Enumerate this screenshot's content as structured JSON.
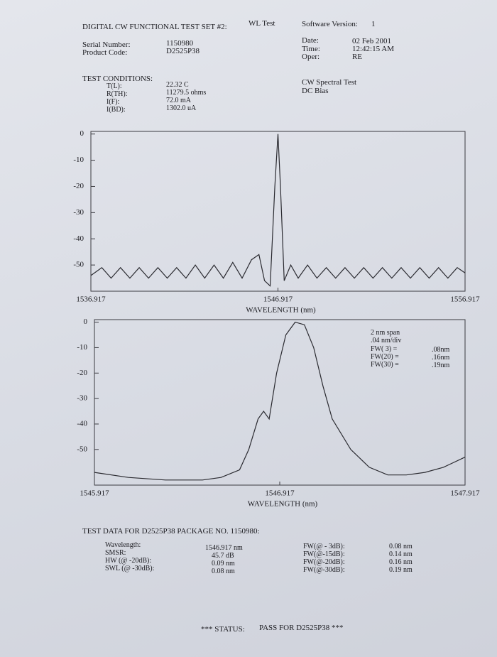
{
  "header": {
    "title": "DIGITAL CW FUNCTIONAL TEST SET #2:",
    "test_name": "WL Test",
    "software_label": "Software Version:",
    "software_version": "1"
  },
  "info_left": [
    {
      "label": "Serial Number:",
      "value": "1150980"
    },
    {
      "label": "Product Code:",
      "value": "D2525P38"
    }
  ],
  "info_right": [
    {
      "label": "Date:",
      "value": "02 Feb 2001"
    },
    {
      "label": "Time:",
      "value": "12:42:15 AM"
    },
    {
      "label": "Oper:",
      "value": "RE"
    }
  ],
  "test_conditions": {
    "title": "TEST CONDITIONS:",
    "rows": [
      {
        "label": "T(L):",
        "value": "22.32 C"
      },
      {
        "label": "R(TH):",
        "value": "11279.5 ohms"
      },
      {
        "label": "I(F):",
        "value": "72.0 mA"
      },
      {
        "label": "I(BD):",
        "value": "1302.0 uA"
      }
    ],
    "notes": [
      "CW Spectral Test",
      "DC Bias"
    ]
  },
  "chart_data": [
    {
      "type": "line",
      "x_label": "WAVELENGTH (nm)",
      "color": "#2a2a30",
      "x": [
        1536.917,
        1537.5,
        1538,
        1538.5,
        1539,
        1539.5,
        1540,
        1540.5,
        1541,
        1541.5,
        1542,
        1542.5,
        1543,
        1543.5,
        1544,
        1544.5,
        1545,
        1545.5,
        1545.9,
        1546.2,
        1546.5,
        1546.75,
        1546.917,
        1547.05,
        1547.25,
        1547.6,
        1548,
        1548.5,
        1549,
        1549.5,
        1550,
        1550.5,
        1551,
        1551.5,
        1552,
        1552.5,
        1553,
        1553.5,
        1554,
        1554.5,
        1555,
        1555.5,
        1556,
        1556.5,
        1556.917
      ],
      "y": [
        -54,
        -51,
        -55,
        -51,
        -55,
        -51,
        -55,
        -51,
        -55,
        -51,
        -55,
        -50,
        -55,
        -50,
        -55,
        -49,
        -55,
        -48,
        -46,
        -56,
        -58,
        -20,
        0,
        -20,
        -56,
        -50,
        -55,
        -50,
        -55,
        -51,
        -55,
        -51,
        -55,
        -51,
        -55,
        -51,
        -55,
        -51,
        -55,
        -51,
        -55,
        -51,
        -55,
        -51,
        -53
      ],
      "xlim": [
        1536.917,
        1556.917
      ],
      "xticks": [
        1536.917,
        1546.917,
        1556.917
      ],
      "ylim": [
        -60,
        1
      ],
      "yticks": [
        0,
        -10,
        -20,
        -30,
        -40,
        -50
      ]
    },
    {
      "type": "line",
      "x_label": "WAVELENGTH (nm)",
      "color": "#2a2a30",
      "x": [
        1545.917,
        1546.1,
        1546.3,
        1546.5,
        1546.6,
        1546.7,
        1546.75,
        1546.8,
        1546.83,
        1546.86,
        1546.9,
        1546.95,
        1547.0,
        1547.05,
        1547.1,
        1547.15,
        1547.2,
        1547.3,
        1547.4,
        1547.5,
        1547.6,
        1547.7,
        1547.8,
        1547.917
      ],
      "y": [
        -59,
        -61,
        -62,
        -62,
        -61,
        -58,
        -50,
        -38,
        -35,
        -38,
        -20,
        -5,
        0,
        -1,
        -10,
        -25,
        -38,
        -50,
        -57,
        -60,
        -60,
        -59,
        -57,
        -53
      ],
      "xlim": [
        1545.917,
        1547.917
      ],
      "xticks": [
        1545.917,
        1546.917,
        1547.917
      ],
      "ylim": [
        -64,
        1
      ],
      "yticks": [
        0,
        -10,
        -20,
        -30,
        -40,
        -50
      ],
      "annotations": [
        "2 nm span",
        ".04 nm/div"
      ],
      "fw_rows": [
        {
          "label": "FW( 3) =",
          "value": ".08nm"
        },
        {
          "label": "FW(20) =",
          "value": ".16nm"
        },
        {
          "label": "FW(30) =",
          "value": ".19nm"
        }
      ]
    }
  ],
  "test_data": {
    "title": "TEST DATA FOR D2525P38 PACKAGE NO. 1150980:",
    "left": [
      {
        "label": "Wavelength:",
        "value": "1546.917 nm"
      },
      {
        "label": "SMSR:",
        "value": "45.7 dB"
      },
      {
        "label": "HW (@ -20dB):",
        "value": "0.09 nm"
      },
      {
        "label": "SWL (@ -30dB):",
        "value": "0.08 nm"
      }
    ],
    "right": [
      {
        "label": "FW(@ - 3dB):",
        "value": "0.08 nm"
      },
      {
        "label": "FW(@-15dB):",
        "value": "0.14 nm"
      },
      {
        "label": "FW(@-20dB):",
        "value": "0.16 nm"
      },
      {
        "label": "FW(@-30dB):",
        "value": "0.19 nm"
      }
    ]
  },
  "status": {
    "prefix": "*** STATUS:",
    "result": "PASS FOR D2525P38 ***"
  }
}
